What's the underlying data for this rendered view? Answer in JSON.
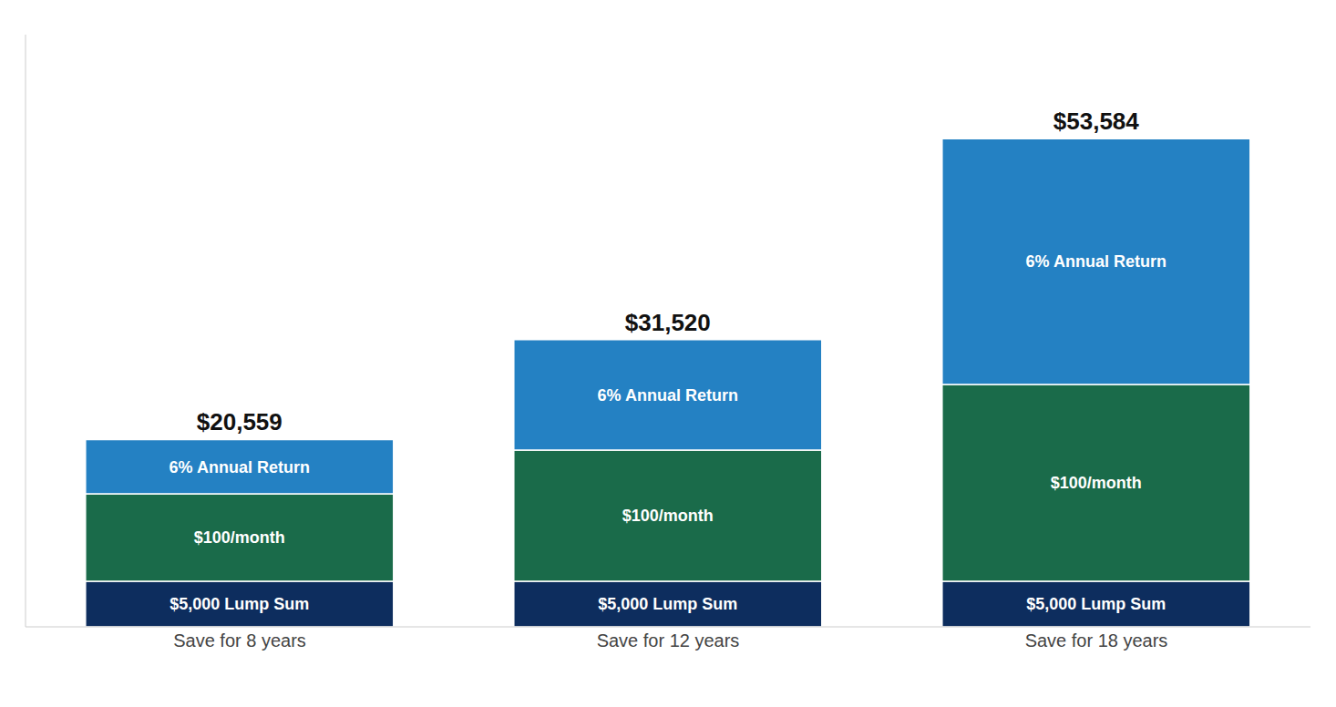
{
  "chart_data": {
    "type": "bar",
    "stacked": true,
    "tick_labels": "x",
    "categories": [
      "Save for 8 years",
      "Save for 12 years",
      "Save for 18 years"
    ],
    "series": [
      {
        "name": "$5,000 Lump Sum",
        "color": "#0d2d5e",
        "values": [
          5000,
          5000,
          5000
        ]
      },
      {
        "name": "$100/month",
        "color": "#1a6b4a",
        "values": [
          9600,
          14400,
          21600
        ]
      },
      {
        "name": "6% Annual Return",
        "color": "#2481c3",
        "values": [
          5959,
          12120,
          26984
        ]
      }
    ],
    "totals": {
      "values": [
        20559,
        31520,
        53584
      ],
      "value_labels": [
        "$20,559",
        "$31,520",
        "$53,584"
      ]
    },
    "ylim": [
      0,
      65000
    ]
  }
}
